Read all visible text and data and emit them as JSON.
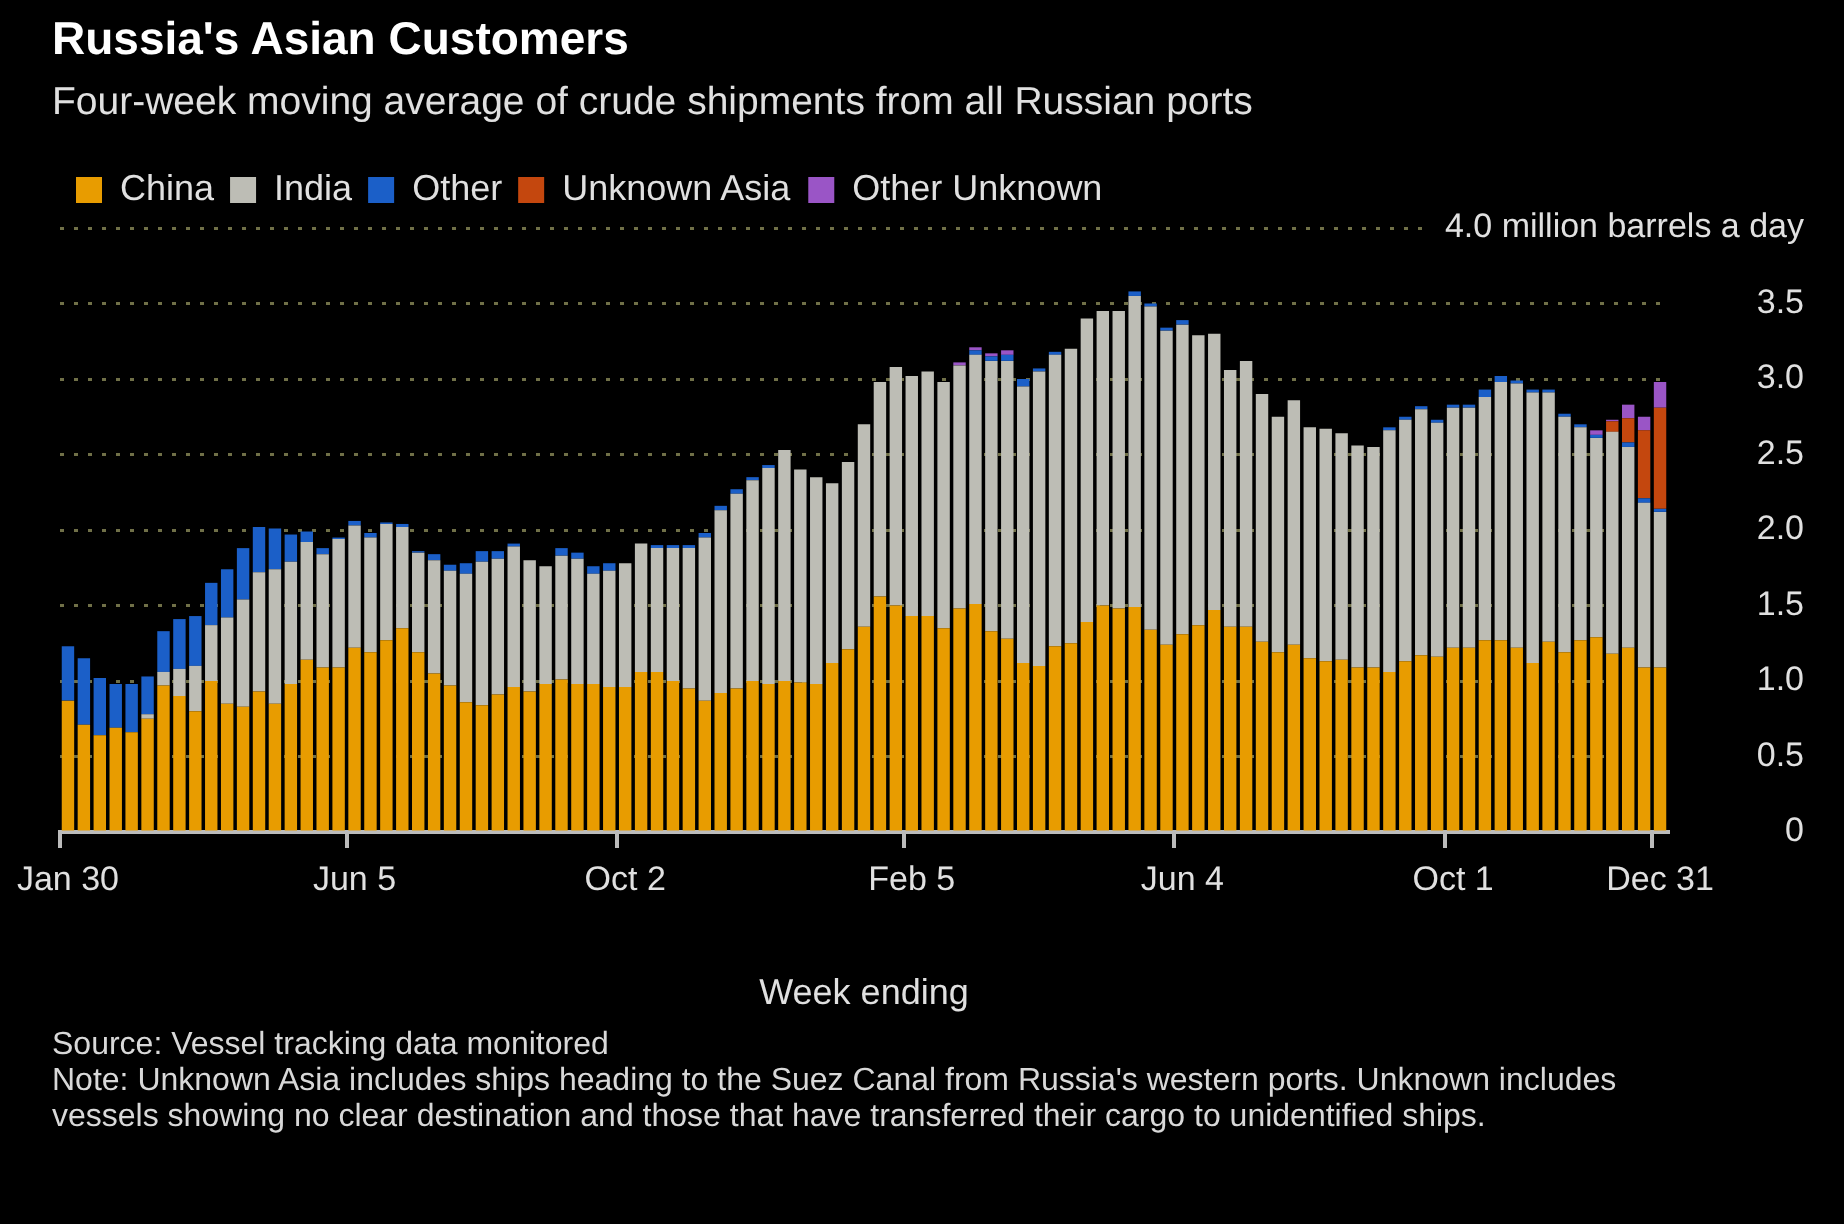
{
  "chart_data": {
    "type": "bar",
    "stacked": true,
    "title": "Russia's Asian Customers",
    "subtitle": "Four-week moving average of crude shipments from all Russian ports",
    "xlabel": "Week ending",
    "categories": [
      "Jan 30",
      null,
      null,
      null,
      null,
      null,
      null,
      null,
      null,
      null,
      null,
      null,
      null,
      null,
      null,
      null,
      null,
      null,
      "Jun 5",
      null,
      null,
      null,
      null,
      null,
      null,
      null,
      null,
      null,
      null,
      null,
      null,
      null,
      null,
      null,
      null,
      "Oct 2",
      null,
      null,
      null,
      null,
      null,
      null,
      null,
      null,
      null,
      null,
      null,
      null,
      null,
      null,
      null,
      null,
      null,
      "Feb 5",
      null,
      null,
      null,
      null,
      null,
      null,
      null,
      null,
      null,
      null,
      null,
      null,
      null,
      null,
      null,
      null,
      "Jun 4",
      null,
      null,
      null,
      null,
      null,
      null,
      null,
      null,
      null,
      null,
      null,
      null,
      null,
      null,
      null,
      null,
      "Oct 1",
      null,
      null,
      null,
      null,
      null,
      null,
      null,
      null,
      null,
      null,
      null,
      null,
      "Dec 31"
    ],
    "series": [
      {
        "name": "China",
        "color": "#e89c00",
        "values": [
          0.87,
          0.71,
          0.64,
          0.69,
          0.66,
          0.75,
          0.97,
          0.9,
          0.8,
          1.0,
          0.85,
          0.83,
          0.93,
          0.85,
          0.98,
          1.14,
          1.09,
          1.09,
          1.22,
          1.19,
          1.27,
          1.35,
          1.19,
          1.05,
          0.97,
          0.86,
          0.84,
          0.91,
          0.96,
          0.93,
          0.98,
          1.01,
          0.98,
          0.98,
          0.96,
          0.96,
          1.06,
          1.06,
          1.0,
          0.95,
          0.87,
          0.92,
          0.95,
          1.0,
          0.98,
          1.0,
          0.99,
          0.98,
          1.12,
          1.21,
          1.36,
          1.56,
          1.5,
          1.43,
          1.43,
          1.35,
          1.48,
          1.51,
          1.33,
          1.28,
          1.12,
          1.1,
          1.23,
          1.25,
          1.39,
          1.5,
          1.48,
          1.49,
          1.34,
          1.24,
          1.31,
          1.37,
          1.47,
          1.36,
          1.36,
          1.26,
          1.19,
          1.24,
          1.15,
          1.13,
          1.14,
          1.09,
          1.09,
          1.06,
          1.13,
          1.17,
          1.16,
          1.22,
          1.22,
          1.27,
          1.27,
          1.22,
          1.12,
          1.26,
          1.19,
          1.27,
          1.29,
          1.18,
          1.22,
          1.09,
          1.09
        ]
      },
      {
        "name": "India",
        "color": "#bdbdb5",
        "values": [
          0,
          0,
          0,
          0,
          0,
          0.03,
          0.09,
          0.18,
          0.3,
          0.37,
          0.57,
          0.71,
          0.79,
          0.89,
          0.81,
          0.78,
          0.75,
          0.85,
          0.81,
          0.76,
          0.77,
          0.67,
          0.66,
          0.75,
          0.76,
          0.85,
          0.95,
          0.9,
          0.93,
          0.87,
          0.78,
          0.82,
          0.83,
          0.73,
          0.77,
          0.82,
          0.85,
          0.82,
          0.88,
          0.93,
          1.08,
          1.21,
          1.29,
          1.33,
          1.43,
          1.53,
          1.41,
          1.37,
          1.19,
          1.24,
          1.34,
          1.42,
          1.58,
          1.59,
          1.62,
          1.63,
          1.61,
          1.65,
          1.79,
          1.84,
          1.83,
          1.95,
          1.93,
          1.95,
          2.01,
          1.95,
          1.97,
          2.06,
          2.14,
          2.08,
          2.05,
          1.92,
          1.83,
          1.7,
          1.76,
          1.64,
          1.56,
          1.62,
          1.53,
          1.54,
          1.5,
          1.47,
          1.46,
          1.6,
          1.6,
          1.63,
          1.55,
          1.59,
          1.59,
          1.61,
          1.71,
          1.75,
          1.79,
          1.65,
          1.56,
          1.41,
          1.32,
          1.47,
          1.33,
          1.09,
          1.03
        ]
      },
      {
        "name": "Other",
        "color": "#1b5fc8",
        "values": [
          0.36,
          0.44,
          0.38,
          0.29,
          0.32,
          0.25,
          0.27,
          0.33,
          0.33,
          0.28,
          0.32,
          0.34,
          0.3,
          0.27,
          0.18,
          0.07,
          0.04,
          0.01,
          0.03,
          0.03,
          0.01,
          0.02,
          0.01,
          0.04,
          0.04,
          0.07,
          0.07,
          0.05,
          0.02,
          0,
          0,
          0.05,
          0.04,
          0.05,
          0.05,
          0,
          0,
          0.02,
          0.02,
          0.02,
          0.03,
          0.03,
          0.03,
          0.02,
          0.02,
          0,
          0,
          0,
          0,
          0,
          0,
          0,
          0,
          0,
          0,
          0,
          0,
          0.03,
          0.03,
          0.04,
          0.05,
          0.02,
          0.02,
          0,
          0,
          0,
          0,
          0.03,
          0.02,
          0.02,
          0.03,
          0,
          0,
          0,
          0,
          0,
          0,
          0,
          0,
          0,
          0,
          0,
          0,
          0.02,
          0.02,
          0.02,
          0.02,
          0.02,
          0.02,
          0.05,
          0.04,
          0.02,
          0.02,
          0.02,
          0.02,
          0.02,
          0.02,
          0,
          0.03,
          0.03,
          0.02
        ]
      },
      {
        "name": "Unknown Asia",
        "color": "#c4470e",
        "values": [
          0,
          0,
          0,
          0,
          0,
          0,
          0,
          0,
          0,
          0,
          0,
          0,
          0,
          0,
          0,
          0,
          0,
          0,
          0,
          0,
          0,
          0,
          0,
          0,
          0,
          0,
          0,
          0,
          0,
          0,
          0,
          0,
          0,
          0,
          0,
          0,
          0,
          0,
          0,
          0,
          0,
          0,
          0,
          0,
          0,
          0,
          0,
          0,
          0,
          0,
          0,
          0,
          0,
          0,
          0,
          0,
          0,
          0,
          0,
          0,
          0,
          0,
          0,
          0,
          0,
          0,
          0,
          0,
          0,
          0,
          0,
          0,
          0,
          0,
          0,
          0,
          0,
          0,
          0,
          0,
          0,
          0,
          0,
          0,
          0,
          0,
          0,
          0,
          0,
          0,
          0,
          0,
          0,
          0,
          0,
          0,
          0,
          0.07,
          0.16,
          0.45,
          0.67
        ]
      },
      {
        "name": "Other Unknown",
        "color": "#9a55c6",
        "values": [
          0,
          0,
          0,
          0,
          0,
          0,
          0,
          0,
          0,
          0,
          0,
          0,
          0,
          0,
          0,
          0,
          0,
          0,
          0,
          0,
          0,
          0,
          0,
          0,
          0,
          0,
          0,
          0,
          0,
          0,
          0,
          0,
          0,
          0,
          0,
          0,
          0,
          0,
          0,
          0,
          0,
          0,
          0,
          0,
          0,
          0,
          0,
          0,
          0,
          0,
          0,
          0,
          0,
          0,
          0,
          0,
          0.02,
          0.02,
          0.02,
          0.03,
          0,
          0,
          0,
          0,
          0,
          0,
          0,
          0,
          0,
          0,
          0,
          0,
          0,
          0,
          0,
          0,
          0,
          0,
          0,
          0,
          0,
          0,
          0,
          0,
          0,
          0,
          0,
          0,
          0,
          0,
          0,
          0,
          0,
          0,
          0,
          0,
          0.03,
          0.01,
          0.09,
          0.09,
          0.17
        ]
      }
    ],
    "ylim": [
      0,
      4
    ],
    "yticks": [
      0,
      0.5,
      {
        "value": 1,
        "label": "1.0"
      },
      1.5,
      {
        "value": 2,
        "label": "2.0"
      },
      2.5,
      {
        "value": 3,
        "label": "3.0"
      },
      3.5,
      {
        "value": 4,
        "label": "4.0 million barrels a day"
      }
    ],
    "grid": "y",
    "legend": "top left",
    "annotations": [
      "Source: Vessel tracking data monitored",
      "Note: Unknown Asia includes ships heading to the Suez Canal from Russia's western ports. Unknown includes vessels showing no clear destination and those that have transferred their cargo to unidentified ships."
    ]
  }
}
